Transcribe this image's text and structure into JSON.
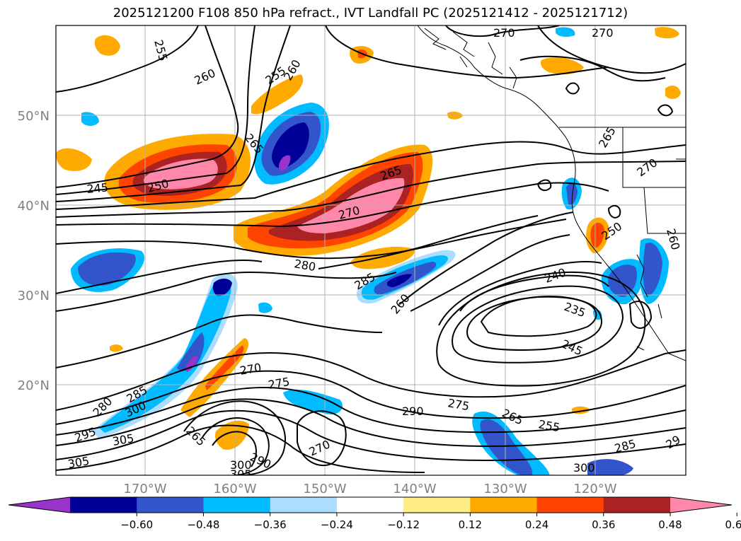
{
  "title": "2025121200 F108 850 hPa refract., IVT Landfall PC (2025121412 - 2025121712)",
  "lat_labels": [
    "50°N",
    "40°N",
    "30°N",
    "20°N"
  ],
  "lon_labels": [
    "170°W",
    "160°W",
    "150°W",
    "140°W",
    "130°W",
    "120°W"
  ],
  "colorbar": {
    "ticks": [
      "−0.60",
      "−0.48",
      "−0.36",
      "−0.24",
      "−0.12",
      "0.12",
      "0.24",
      "0.36",
      "0.48",
      "0.60"
    ],
    "colors": [
      "#9933cc",
      "#000099",
      "#3355cc",
      "#00bbff",
      "#aaddff",
      "#ffffff",
      "#ffee88",
      "#ffaa00",
      "#ff4400",
      "#aa2222",
      "#ff88aa"
    ]
  },
  "contour_labels": [
    {
      "text": "255"
    },
    {
      "text": "260"
    },
    {
      "text": "255"
    },
    {
      "text": "260"
    },
    {
      "text": "270"
    },
    {
      "text": "270"
    },
    {
      "text": "265"
    },
    {
      "text": "245"
    },
    {
      "text": "250"
    },
    {
      "text": "265"
    },
    {
      "text": "270"
    },
    {
      "text": "265"
    },
    {
      "text": "270"
    },
    {
      "text": "280"
    },
    {
      "text": "285"
    },
    {
      "text": "260"
    },
    {
      "text": "250"
    },
    {
      "text": "260"
    },
    {
      "text": "240"
    },
    {
      "text": "235"
    },
    {
      "text": "245"
    },
    {
      "text": "270"
    },
    {
      "text": "275"
    },
    {
      "text": "285"
    },
    {
      "text": "280"
    },
    {
      "text": "300"
    },
    {
      "text": "295"
    },
    {
      "text": "305"
    },
    {
      "text": "305"
    },
    {
      "text": "265"
    },
    {
      "text": "290"
    },
    {
      "text": "300"
    },
    {
      "text": "305"
    },
    {
      "text": "270"
    },
    {
      "text": "290"
    },
    {
      "text": "275"
    },
    {
      "text": "265"
    },
    {
      "text": "255"
    },
    {
      "text": "285"
    },
    {
      "text": "300"
    },
    {
      "text": "29"
    }
  ]
}
